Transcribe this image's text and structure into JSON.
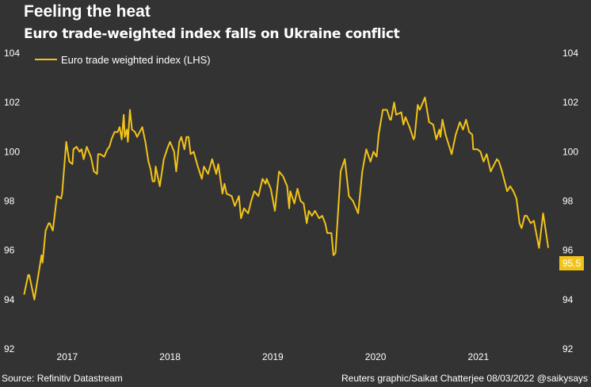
{
  "chart_data": {
    "type": "line",
    "title": "Feeling the heat",
    "subtitle": "Euro trade-weighted index falls on Ukraine conflict",
    "xlabel": "",
    "ylabel": "",
    "ylim": [
      92,
      104
    ],
    "yticks": [
      "92",
      "94",
      "96",
      "98",
      "100",
      "102",
      "104"
    ],
    "xticks": [
      "2017",
      "2018",
      "2019",
      "2020",
      "2021"
    ],
    "legend": {
      "position": "top-left"
    },
    "last_value_label": "95.5",
    "series": [
      {
        "name": "Euro trade weighted index (LHS)",
        "color": "#f2c318",
        "points": [
          [
            2017.08,
            94.2
          ],
          [
            2017.12,
            95.0
          ],
          [
            2017.13,
            95.0
          ],
          [
            2017.18,
            94.0
          ],
          [
            2017.25,
            95.8
          ],
          [
            2017.26,
            95.5
          ],
          [
            2017.29,
            96.8
          ],
          [
            2017.32,
            97.1
          ],
          [
            2017.33,
            97.1
          ],
          [
            2017.36,
            96.8
          ],
          [
            2017.4,
            98.2
          ],
          [
            2017.44,
            98.1
          ],
          [
            2017.45,
            98.3
          ],
          [
            2017.49,
            100.4
          ],
          [
            2017.52,
            99.6
          ],
          [
            2017.55,
            99.5
          ],
          [
            2017.56,
            100.1
          ],
          [
            2017.59,
            100.2
          ],
          [
            2017.62,
            100.0
          ],
          [
            2017.64,
            100.1
          ],
          [
            2017.66,
            99.7
          ],
          [
            2017.69,
            100.2
          ],
          [
            2017.73,
            99.8
          ],
          [
            2017.76,
            99.2
          ],
          [
            2017.79,
            99.1
          ],
          [
            2017.8,
            99.9
          ],
          [
            2017.82,
            99.9
          ],
          [
            2017.86,
            99.8
          ],
          [
            2017.89,
            100.1
          ],
          [
            2017.91,
            100.2
          ],
          [
            2017.93,
            100.5
          ],
          [
            2017.96,
            100.8
          ],
          [
            2017.99,
            100.8
          ],
          [
            2018.01,
            101.0
          ],
          [
            2018.03,
            100.5
          ],
          [
            2018.05,
            101.5
          ],
          [
            2018.06,
            100.6
          ],
          [
            2018.08,
            100.9
          ],
          [
            2018.09,
            100.4
          ],
          [
            2018.11,
            101.7
          ],
          [
            2018.13,
            100.9
          ],
          [
            2018.16,
            100.8
          ],
          [
            2018.18,
            100.6
          ],
          [
            2018.23,
            101.0
          ],
          [
            2018.26,
            100.4
          ],
          [
            2018.29,
            99.6
          ],
          [
            2018.31,
            99.3
          ],
          [
            2018.33,
            98.8
          ],
          [
            2018.35,
            98.8
          ],
          [
            2018.36,
            99.4
          ],
          [
            2018.4,
            98.6
          ],
          [
            2018.44,
            99.7
          ],
          [
            2018.48,
            100.2
          ],
          [
            2018.5,
            100.4
          ],
          [
            2018.54,
            100.0
          ],
          [
            2018.56,
            99.2
          ],
          [
            2018.59,
            100.4
          ],
          [
            2018.61,
            100.6
          ],
          [
            2018.64,
            100.1
          ],
          [
            2018.66,
            100.6
          ],
          [
            2018.68,
            100.6
          ],
          [
            2018.7,
            99.9
          ],
          [
            2018.73,
            100.0
          ],
          [
            2018.77,
            99.4
          ],
          [
            2018.81,
            98.9
          ],
          [
            2018.83,
            99.4
          ],
          [
            2018.87,
            99.1
          ],
          [
            2018.91,
            99.7
          ],
          [
            2018.95,
            99.1
          ],
          [
            2018.97,
            99.5
          ],
          [
            2019.01,
            98.3
          ],
          [
            2019.03,
            98.7
          ],
          [
            2019.05,
            98.3
          ],
          [
            2019.1,
            98.2
          ],
          [
            2019.13,
            97.8
          ],
          [
            2019.17,
            98.2
          ],
          [
            2019.19,
            97.3
          ],
          [
            2019.22,
            97.7
          ],
          [
            2019.26,
            97.5
          ],
          [
            2019.29,
            98.0
          ],
          [
            2019.32,
            98.4
          ],
          [
            2019.36,
            98.2
          ],
          [
            2019.4,
            98.9
          ],
          [
            2019.43,
            98.7
          ],
          [
            2019.44,
            98.9
          ],
          [
            2019.48,
            98.5
          ],
          [
            2019.52,
            97.6
          ],
          [
            2019.56,
            99.2
          ],
          [
            2019.6,
            99.0
          ],
          [
            2019.64,
            98.6
          ],
          [
            2019.66,
            97.7
          ],
          [
            2019.67,
            98.4
          ],
          [
            2019.71,
            97.9
          ],
          [
            2019.74,
            98.5
          ],
          [
            2019.77,
            98.0
          ],
          [
            2019.8,
            97.9
          ],
          [
            2019.83,
            97.1
          ],
          [
            2019.85,
            97.6
          ],
          [
            2019.88,
            97.4
          ],
          [
            2019.91,
            97.6
          ],
          [
            2019.95,
            97.3
          ],
          [
            2019.98,
            97.4
          ],
          [
            2020.01,
            97.1
          ],
          [
            2020.03,
            96.7
          ],
          [
            2020.07,
            96.7
          ],
          [
            2020.09,
            95.8
          ],
          [
            2020.11,
            95.9
          ],
          [
            2020.16,
            99.2
          ],
          [
            2020.2,
            99.7
          ],
          [
            2020.24,
            98.2
          ],
          [
            2020.28,
            98.0
          ],
          [
            2020.3,
            97.8
          ],
          [
            2020.33,
            97.5
          ],
          [
            2020.37,
            99.2
          ],
          [
            2020.41,
            100.1
          ],
          [
            2020.45,
            99.6
          ],
          [
            2020.48,
            100.0
          ],
          [
            2020.51,
            99.8
          ],
          [
            2020.53,
            100.7
          ],
          [
            2020.57,
            101.7
          ],
          [
            2020.61,
            101.7
          ],
          [
            2020.64,
            101.3
          ],
          [
            2020.65,
            101.3
          ],
          [
            2020.68,
            102.0
          ],
          [
            2020.7,
            101.5
          ],
          [
            2020.75,
            101.6
          ],
          [
            2020.77,
            101.1
          ],
          [
            2020.79,
            101.4
          ],
          [
            2020.83,
            101.0
          ],
          [
            2020.87,
            100.5
          ],
          [
            2020.88,
            100.6
          ],
          [
            2020.91,
            101.9
          ],
          [
            2020.93,
            101.7
          ],
          [
            2020.95,
            101.9
          ],
          [
            2020.98,
            102.2
          ],
          [
            2021.02,
            101.2
          ],
          [
            2021.06,
            101.1
          ],
          [
            2021.09,
            100.5
          ],
          [
            2021.12,
            100.9
          ],
          [
            2021.13,
            100.6
          ],
          [
            2021.15,
            101.3
          ],
          [
            2021.18,
            100.7
          ],
          [
            2021.24,
            99.9
          ],
          [
            2021.28,
            100.7
          ],
          [
            2021.32,
            101.2
          ],
          [
            2021.35,
            100.9
          ],
          [
            2021.38,
            101.3
          ],
          [
            2021.41,
            100.8
          ],
          [
            2021.44,
            100.7
          ],
          [
            2021.45,
            100.1
          ],
          [
            2021.49,
            100.1
          ],
          [
            2021.52,
            100.0
          ],
          [
            2021.55,
            99.6
          ],
          [
            2021.58,
            99.9
          ],
          [
            2021.62,
            99.2
          ],
          [
            2021.68,
            99.7
          ],
          [
            2021.7,
            99.6
          ],
          [
            2021.73,
            99.2
          ],
          [
            2021.78,
            98.4
          ],
          [
            2021.81,
            98.6
          ],
          [
            2021.84,
            98.4
          ],
          [
            2021.87,
            98.1
          ],
          [
            2021.9,
            97.1
          ],
          [
            2021.92,
            96.9
          ],
          [
            2021.95,
            97.4
          ],
          [
            2021.97,
            97.4
          ],
          [
            2022.01,
            97.1
          ],
          [
            2022.04,
            97.2
          ],
          [
            2022.09,
            96.1
          ],
          [
            2022.13,
            97.5
          ],
          [
            2022.18,
            96.1
          ]
        ]
      }
    ]
  },
  "footer": {
    "source": "Source: Refinitiv Datastream",
    "credit": "Reuters graphic/Saikat Chatterjee 08/03/2022 @saikysays"
  }
}
